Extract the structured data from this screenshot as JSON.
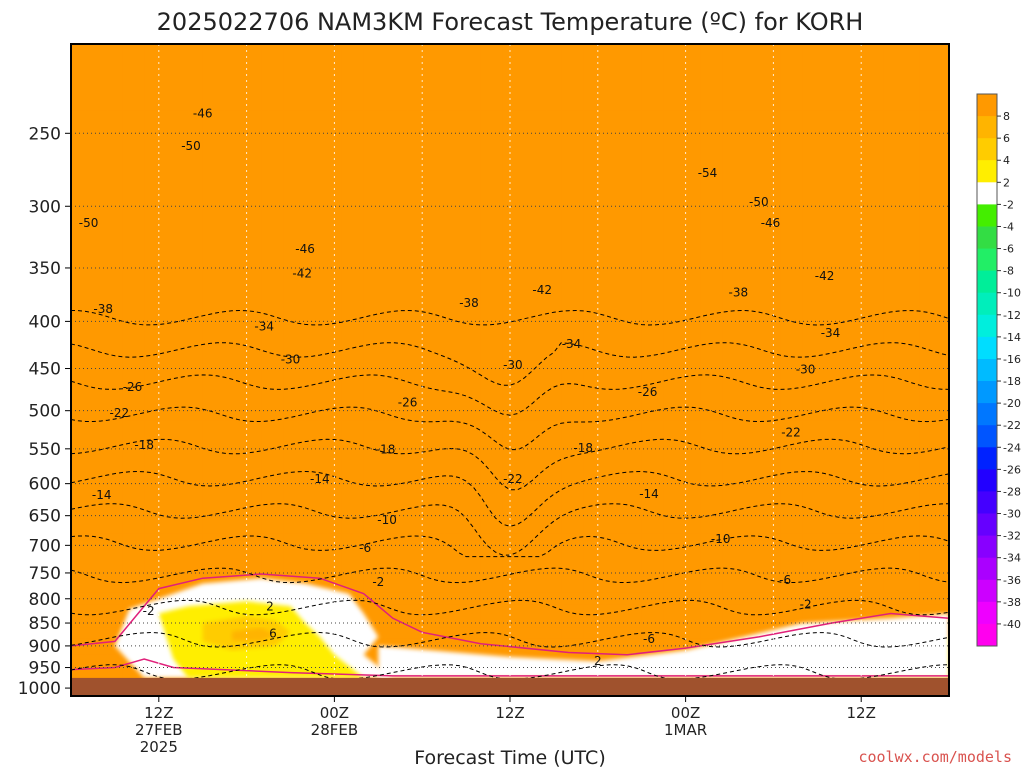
{
  "chart_data": {
    "type": "heatmap",
    "title": "2025022706 NAM3KM Forecast Temperature (ºC) for KORH",
    "xlabel": "Forecast Time (UTC)",
    "credit": "coolwx.com/models",
    "x_ticks": [
      {
        "hour": 6,
        "lines": [
          "12Z",
          "27FEB",
          "2025"
        ]
      },
      {
        "hour": 18,
        "lines": [
          "00Z",
          "28FEB"
        ]
      },
      {
        "hour": 30,
        "lines": [
          "12Z"
        ]
      },
      {
        "hour": 42,
        "lines": [
          "00Z",
          "1MAR"
        ]
      },
      {
        "hour": 54,
        "lines": [
          "12Z"
        ]
      }
    ],
    "xlim_hours": [
      0,
      60
    ],
    "y_axis": "pressure (hPa)",
    "y_ticks": [
      250,
      300,
      350,
      400,
      450,
      500,
      550,
      600,
      650,
      700,
      750,
      800,
      850,
      900,
      950,
      1000
    ],
    "ylim": [
      1020,
      200
    ],
    "colorbar": {
      "labels": [
        "8",
        "6",
        "4",
        "2",
        "-2",
        "-4",
        "-6",
        "-8",
        "-10",
        "-12",
        "-14",
        "-16",
        "-18",
        "-20",
        "-22",
        "-24",
        "-26",
        "-28",
        "-30",
        "-32",
        "-34",
        "-36",
        "-38",
        "-40"
      ],
      "bins": [
        {
          "max": 10,
          "color": "#ff9900"
        },
        {
          "max": 8,
          "color": "#ffb400"
        },
        {
          "max": 6,
          "color": "#ffcc00"
        },
        {
          "max": 4,
          "color": "#ffee00"
        },
        {
          "max": 2,
          "color": "#ffffff"
        },
        {
          "max": -2,
          "color": "#44ee00"
        },
        {
          "max": -4,
          "color": "#33dd44"
        },
        {
          "max": -6,
          "color": "#22ee66"
        },
        {
          "max": -8,
          "color": "#00ee99"
        },
        {
          "max": -10,
          "color": "#00eebb"
        },
        {
          "max": -12,
          "color": "#00eedd"
        },
        {
          "max": -14,
          "color": "#00ddff"
        },
        {
          "max": -16,
          "color": "#00bbff"
        },
        {
          "max": -18,
          "color": "#0099ff"
        },
        {
          "max": -20,
          "color": "#0077ff"
        },
        {
          "max": -22,
          "color": "#0055ff"
        },
        {
          "max": -24,
          "color": "#0022ff"
        },
        {
          "max": -26,
          "color": "#2200ff"
        },
        {
          "max": -28,
          "color": "#4400ff"
        },
        {
          "max": -30,
          "color": "#6600ff"
        },
        {
          "max": -32,
          "color": "#8800ff"
        },
        {
          "max": -34,
          "color": "#aa00ff"
        },
        {
          "max": -36,
          "color": "#cc00ff"
        },
        {
          "max": -38,
          "color": "#ee00ff"
        },
        {
          "max": -40,
          "color": "#ff00ee"
        }
      ]
    },
    "ground_color": "#a0522d",
    "freezing_line_color": "#e0207a",
    "surface_pressure_hpa": 975,
    "contour_labels": [
      {
        "value": "-46",
        "hour": 9.0,
        "p": 238
      },
      {
        "value": "-50",
        "hour": 8.2,
        "p": 258
      },
      {
        "value": "-54",
        "hour": 43.5,
        "p": 276
      },
      {
        "value": "-50",
        "hour": 1.2,
        "p": 313
      },
      {
        "value": "-50",
        "hour": 47.0,
        "p": 297
      },
      {
        "value": "-46",
        "hour": 47.8,
        "p": 313
      },
      {
        "value": "-46",
        "hour": 16.0,
        "p": 334
      },
      {
        "value": "-42",
        "hour": 15.8,
        "p": 355
      },
      {
        "value": "-42",
        "hour": 32.2,
        "p": 370
      },
      {
        "value": "-42",
        "hour": 51.5,
        "p": 357
      },
      {
        "value": "-38",
        "hour": 2.2,
        "p": 388
      },
      {
        "value": "-38",
        "hour": 27.2,
        "p": 382
      },
      {
        "value": "-38",
        "hour": 45.6,
        "p": 372
      },
      {
        "value": "-34",
        "hour": 13.2,
        "p": 405
      },
      {
        "value": "-34",
        "hour": 34.2,
        "p": 423
      },
      {
        "value": "-34",
        "hour": 51.9,
        "p": 412
      },
      {
        "value": "-30",
        "hour": 15.0,
        "p": 440
      },
      {
        "value": "-30",
        "hour": 30.2,
        "p": 446
      },
      {
        "value": "-30",
        "hour": 50.2,
        "p": 451
      },
      {
        "value": "-26",
        "hour": 4.2,
        "p": 471
      },
      {
        "value": "-26",
        "hour": 23.0,
        "p": 490
      },
      {
        "value": "-26",
        "hour": 39.4,
        "p": 477
      },
      {
        "value": "-22",
        "hour": 3.3,
        "p": 503
      },
      {
        "value": "-22",
        "hour": 49.2,
        "p": 528
      },
      {
        "value": "-22",
        "hour": 30.2,
        "p": 593
      },
      {
        "value": "-18",
        "hour": 5.0,
        "p": 545
      },
      {
        "value": "-18",
        "hour": 21.5,
        "p": 551
      },
      {
        "value": "-18",
        "hour": 35.0,
        "p": 549
      },
      {
        "value": "-14",
        "hour": 2.1,
        "p": 617
      },
      {
        "value": "-14",
        "hour": 17.0,
        "p": 593
      },
      {
        "value": "-14",
        "hour": 39.5,
        "p": 616
      },
      {
        "value": "-10",
        "hour": 21.6,
        "p": 657
      },
      {
        "value": "-10",
        "hour": 44.4,
        "p": 689
      },
      {
        "value": "-6",
        "hour": 20.1,
        "p": 705
      },
      {
        "value": "-6",
        "hour": 48.8,
        "p": 763
      },
      {
        "value": "-6",
        "hour": 39.5,
        "p": 885
      },
      {
        "value": "-2",
        "hour": 21.0,
        "p": 767
      },
      {
        "value": "-2",
        "hour": 50.2,
        "p": 812
      },
      {
        "value": "-2",
        "hour": 5.3,
        "p": 825
      },
      {
        "value": "2",
        "hour": 13.6,
        "p": 816
      },
      {
        "value": "2",
        "hour": 36.0,
        "p": 935
      },
      {
        "value": "6",
        "hour": 13.8,
        "p": 872
      }
    ]
  }
}
